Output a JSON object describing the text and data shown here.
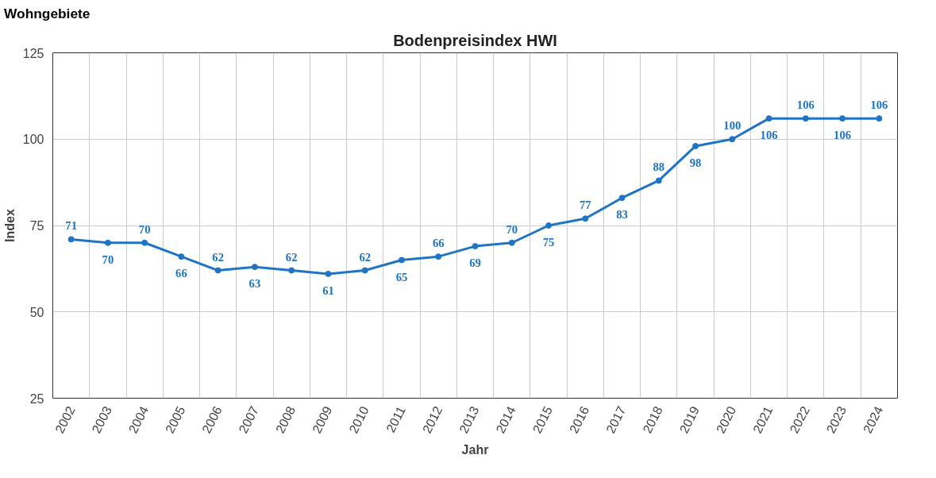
{
  "chart_data": {
    "type": "line",
    "title": "Bodenpreisindex HWI",
    "xlabel": "Jahr",
    "ylabel": "Index",
    "annotations": [
      "Wohngebiete"
    ],
    "categories": [
      "2002",
      "2003",
      "2004",
      "2005",
      "2006",
      "2007",
      "2008",
      "2009",
      "2010",
      "2011",
      "2012",
      "2013",
      "2014",
      "2015",
      "2016",
      "2017",
      "2018",
      "2019",
      "2020",
      "2021",
      "2022",
      "2023",
      "2024"
    ],
    "series": [
      {
        "color": "#1f74c4",
        "values": [
          71,
          70,
          70,
          66,
          62,
          63,
          62,
          61,
          62,
          65,
          66,
          69,
          70,
          75,
          77,
          83,
          88,
          98,
          100,
          106,
          106,
          106,
          106
        ]
      }
    ],
    "ylim": [
      25,
      125
    ],
    "yticks": [
      25,
      50,
      75,
      100,
      125
    ],
    "grid": true,
    "data_labels": true,
    "marker": "circle",
    "line_style": "solid"
  }
}
